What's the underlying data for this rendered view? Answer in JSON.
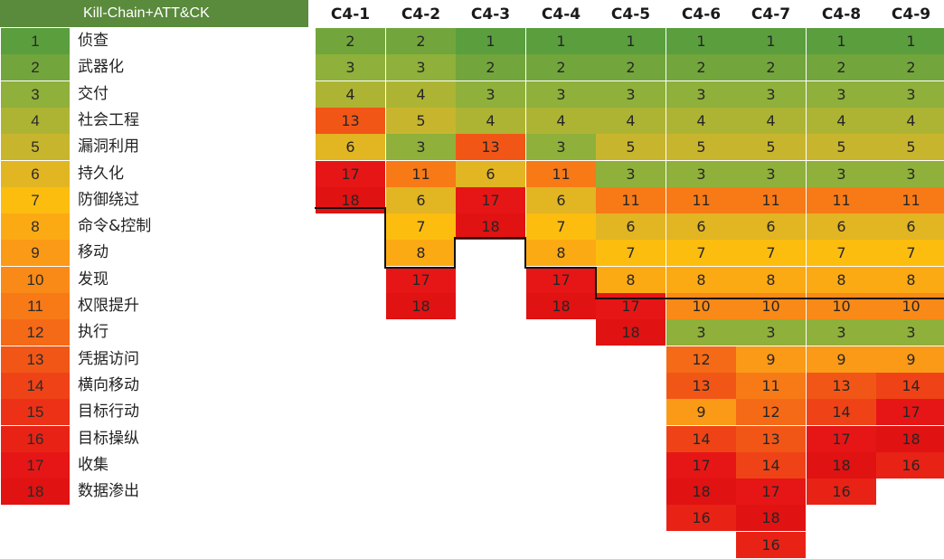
{
  "chart_data": {
    "type": "table",
    "legend_title": "Kill-Chain+ATT&CK",
    "legend": [
      {
        "num": "1",
        "label": "侦查"
      },
      {
        "num": "2",
        "label": "武器化"
      },
      {
        "num": "3",
        "label": "交付"
      },
      {
        "num": "4",
        "label": "社会工程"
      },
      {
        "num": "5",
        "label": "漏洞利用"
      },
      {
        "num": "6",
        "label": "持久化"
      },
      {
        "num": "7",
        "label": "防御绕过"
      },
      {
        "num": "8",
        "label": "命令&控制"
      },
      {
        "num": "9",
        "label": "移动"
      },
      {
        "num": "10",
        "label": "发现"
      },
      {
        "num": "11",
        "label": "权限提升"
      },
      {
        "num": "12",
        "label": "执行"
      },
      {
        "num": "13",
        "label": "凭据访问"
      },
      {
        "num": "14",
        "label": "横向移动"
      },
      {
        "num": "15",
        "label": "目标行动"
      },
      {
        "num": "16",
        "label": "目标操纵"
      },
      {
        "num": "17",
        "label": "收集"
      },
      {
        "num": "18",
        "label": "数据渗出"
      }
    ],
    "stage_colors": {
      "1": "#5a9e3e",
      "2": "#72a63c",
      "3": "#8fb03a",
      "4": "#adb434",
      "5": "#c8b52e",
      "6": "#e2b522",
      "7": "#fcbd0f",
      "8": "#fcaa13",
      "9": "#fb9a16",
      "10": "#f98a17",
      "11": "#f77a17",
      "12": "#f56a17",
      "13": "#f25617",
      "14": "#ef4317",
      "15": "#ec3117",
      "16": "#e92216",
      "17": "#e61616",
      "18": "#e01212"
    },
    "columns": [
      {
        "name": "C4-1",
        "values": [
          2,
          3,
          4,
          13,
          6,
          17,
          18
        ]
      },
      {
        "name": "C4-2",
        "values": [
          2,
          3,
          4,
          5,
          3,
          11,
          6,
          7,
          8,
          17,
          18
        ]
      },
      {
        "name": "C4-3",
        "values": [
          1,
          2,
          3,
          4,
          13,
          6,
          17,
          18
        ]
      },
      {
        "name": "C4-4",
        "values": [
          1,
          2,
          3,
          4,
          3,
          11,
          6,
          7,
          8,
          17,
          18
        ]
      },
      {
        "name": "C4-5",
        "values": [
          1,
          2,
          3,
          4,
          5,
          3,
          11,
          6,
          7,
          8,
          17,
          18
        ]
      },
      {
        "name": "C4-6",
        "values": [
          1,
          2,
          3,
          4,
          5,
          3,
          11,
          6,
          7,
          8,
          10,
          3,
          12,
          13,
          9,
          14,
          17,
          18,
          16
        ]
      },
      {
        "name": "C4-7",
        "values": [
          1,
          2,
          3,
          4,
          5,
          3,
          11,
          6,
          7,
          8,
          10,
          3,
          9,
          11,
          12,
          13,
          14,
          17,
          18,
          16
        ]
      },
      {
        "name": "C4-8",
        "values": [
          1,
          2,
          3,
          4,
          5,
          3,
          11,
          6,
          7,
          8,
          10,
          3,
          9,
          13,
          14,
          17,
          18,
          16
        ]
      },
      {
        "name": "C4-9",
        "values": [
          1,
          2,
          3,
          4,
          5,
          3,
          11,
          6,
          7,
          8,
          10,
          3,
          9,
          14,
          17,
          18,
          16
        ]
      }
    ]
  }
}
